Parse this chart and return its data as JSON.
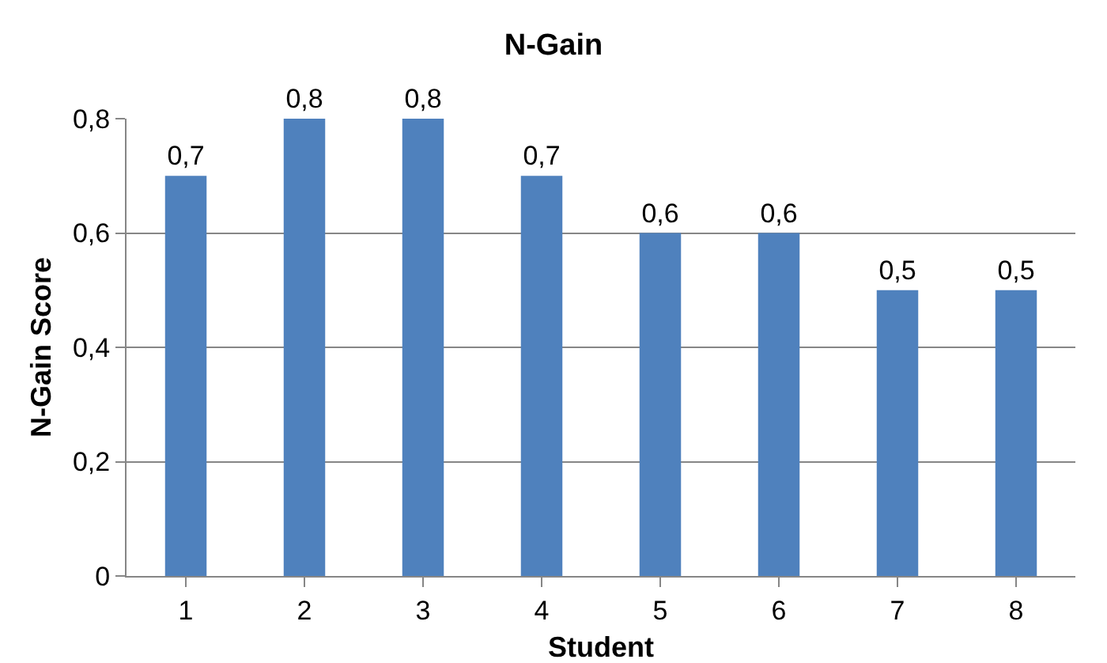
{
  "chart_data": {
    "type": "bar",
    "title": "N-Gain",
    "xlabel": "Student",
    "ylabel": "N-Gain Score",
    "categories": [
      "1",
      "2",
      "3",
      "4",
      "5",
      "6",
      "7",
      "8"
    ],
    "values": [
      0.7,
      0.8,
      0.8,
      0.7,
      0.6,
      0.6,
      0.5,
      0.5
    ],
    "value_labels": [
      "0,7",
      "0,8",
      "0,8",
      "0,7",
      "0,6",
      "0,6",
      "0,5",
      "0,5"
    ],
    "color": "#4f81bd",
    "ylim": [
      0,
      0.8
    ],
    "yticks": [
      {
        "value": 0,
        "label": "0"
      },
      {
        "value": 0.2,
        "label": "0,2"
      },
      {
        "value": 0.4,
        "label": "0,4"
      },
      {
        "value": 0.6,
        "label": "0,6"
      },
      {
        "value": 0.8,
        "label": "0,8"
      }
    ],
    "grid": "y"
  }
}
